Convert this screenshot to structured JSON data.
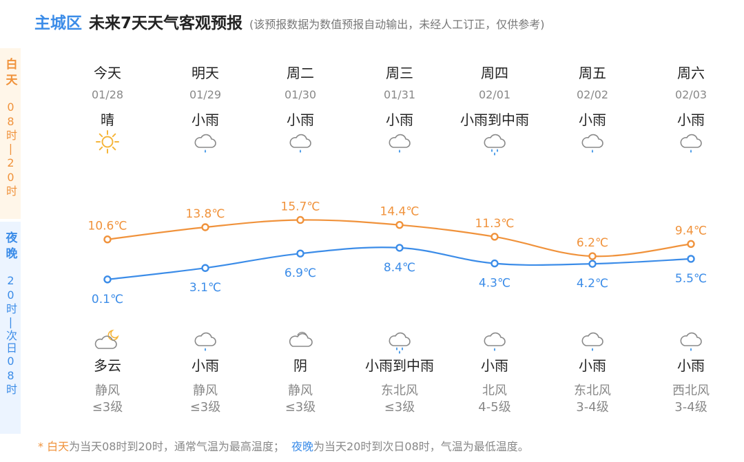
{
  "header": {
    "region": "主城区",
    "title": "未来7天天气客观预报",
    "note": "(该预报数据为数值预报自动输出，未经人工订正，仅供参考)"
  },
  "side": {
    "day_label": "白天",
    "day_time": "08时|20时",
    "night_label": "夜晚",
    "night_time": "20时|次日08时"
  },
  "days": [
    {
      "name": "今天",
      "date": "01/28",
      "day_cond": "晴",
      "day_icon": "sun-icon",
      "night_cond": "多云",
      "night_icon": "cloudy-moon-icon",
      "wind_dir": "静风",
      "wind_level": "≤3级"
    },
    {
      "name": "明天",
      "date": "01/29",
      "day_cond": "小雨",
      "day_icon": "light-rain-icon",
      "night_cond": "小雨",
      "night_icon": "light-rain-icon",
      "wind_dir": "静风",
      "wind_level": "≤3级"
    },
    {
      "name": "周二",
      "date": "01/30",
      "day_cond": "小雨",
      "day_icon": "light-rain-icon",
      "night_cond": "阴",
      "night_icon": "overcast-icon",
      "wind_dir": "静风",
      "wind_level": "≤3级"
    },
    {
      "name": "周三",
      "date": "01/31",
      "day_cond": "小雨",
      "day_icon": "light-rain-icon",
      "night_cond": "小雨到中雨",
      "night_icon": "moderate-rain-icon",
      "wind_dir": "东北风",
      "wind_level": "≤3级"
    },
    {
      "name": "周四",
      "date": "02/01",
      "day_cond": "小雨到中雨",
      "day_icon": "moderate-rain-icon",
      "night_cond": "小雨",
      "night_icon": "light-rain-icon",
      "wind_dir": "北风",
      "wind_level": "4-5级"
    },
    {
      "name": "周五",
      "date": "02/02",
      "day_cond": "小雨",
      "day_icon": "light-rain-icon",
      "night_cond": "小雨",
      "night_icon": "light-rain-icon",
      "wind_dir": "东北风",
      "wind_level": "3-4级"
    },
    {
      "name": "周六",
      "date": "02/03",
      "day_cond": "小雨",
      "day_icon": "light-rain-icon",
      "night_cond": "小雨",
      "night_icon": "light-rain-icon",
      "wind_dir": "西北风",
      "wind_level": "3-4级"
    }
  ],
  "chart_data": {
    "type": "line",
    "unit": "℃",
    "categories": [
      "01/28",
      "01/29",
      "01/30",
      "01/31",
      "02/01",
      "02/02",
      "02/03"
    ],
    "series": [
      {
        "name": "白天",
        "color": "#f0923b",
        "values": [
          10.6,
          13.8,
          15.7,
          14.4,
          11.3,
          6.2,
          9.4
        ]
      },
      {
        "name": "夜晚",
        "color": "#3b8ce8",
        "values": [
          0.1,
          3.1,
          6.9,
          8.4,
          4.3,
          4.2,
          5.5
        ]
      }
    ],
    "labels": {
      "day": [
        "10.6℃",
        "13.8℃",
        "15.7℃",
        "14.4℃",
        "11.3℃",
        "6.2℃",
        "9.4℃"
      ],
      "night": [
        "0.1℃",
        "3.1℃",
        "6.9℃",
        "8.4℃",
        "4.3℃",
        "4.2℃",
        "5.5℃"
      ]
    },
    "grid": false
  },
  "footer": {
    "star": "* ",
    "day_word": "白天",
    "day_text": "为当天08时到20时，通常气温为最高温度；",
    "night_word": "夜晚",
    "night_text": "为当天20时到次日08时，气温为最低温度。"
  },
  "colors": {
    "accent_blue": "#3b8ce8",
    "accent_orange": "#f0923b",
    "sun_yellow": "#f5b53a",
    "rain_drop": "#4a9be8"
  }
}
